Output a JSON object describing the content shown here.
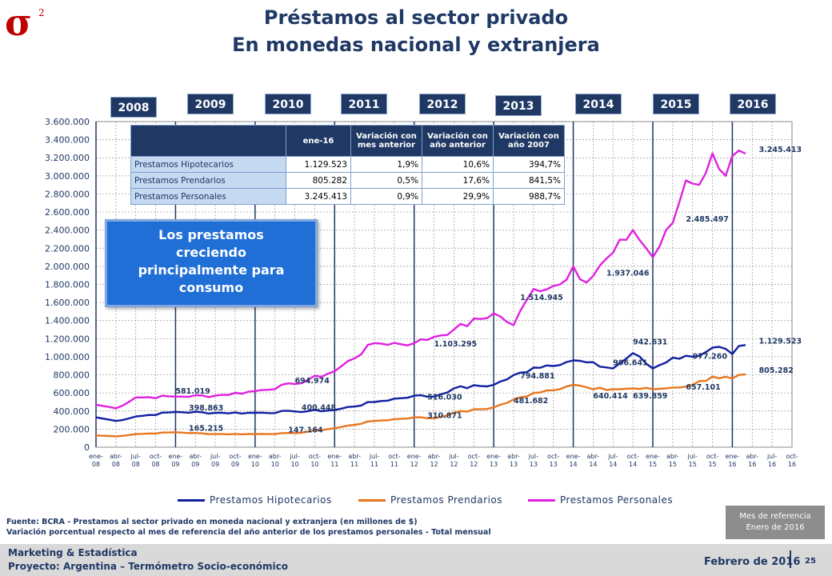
{
  "logo": {
    "symbol": "σ",
    "superscript": "2"
  },
  "title": {
    "line1": "Préstamos al sector privado",
    "line2": "En monedas nacional y extranjera"
  },
  "years": [
    "2008",
    "2009",
    "2010",
    "2011",
    "2012",
    "2013",
    "2014",
    "2015",
    "2016"
  ],
  "summary_table": {
    "headers": [
      "ene-16",
      "Variación con\nmes anterior",
      "Variación con\naño anterior",
      "Variación con\naño 2007"
    ],
    "rows": [
      [
        "Prestamos Hipotecarios",
        "1.129.523",
        "1,9%",
        "10,6%",
        "394,7%"
      ],
      [
        "Prestamos Prendarios",
        "805.282",
        "0,5%",
        "17,6%",
        "841,5%"
      ],
      [
        "Prestamos Personales",
        "3.245.413",
        "0,9%",
        "29,9%",
        "988,7%"
      ]
    ]
  },
  "callout": {
    "line1": "Los prestamos",
    "line2": "creciendo",
    "line3": "principalmente  para",
    "line4": "consumo"
  },
  "colors": {
    "hipotecarios": "#1020a0",
    "prendarios": "#e8761e",
    "personales": "#e020e0",
    "navy": "#1f3864"
  },
  "chart_data": {
    "type": "line",
    "ylim": [
      0,
      3600000
    ],
    "yticks": [
      "0",
      "200.000",
      "400.000",
      "600.000",
      "800.000",
      "1.000.000",
      "1.200.000",
      "1.400.000",
      "1.600.000",
      "1.800.000",
      "2.000.000",
      "2.200.000",
      "2.400.000",
      "2.600.000",
      "2.800.000",
      "3.000.000",
      "3.200.000",
      "3.400.000",
      "3.600.000"
    ],
    "xticks": [
      "ene-08",
      "abr-08",
      "jul-08",
      "oct-08",
      "ene-09",
      "abr-09",
      "jul-09",
      "oct-09",
      "ene-10",
      "abr-10",
      "jul-10",
      "oct-10",
      "ene-11",
      "abr-11",
      "jul-11",
      "oct-11",
      "ene-12",
      "abr-12",
      "jul-12",
      "oct-12",
      "ene-13",
      "abr-13",
      "jul-13",
      "oct-13",
      "ene-14",
      "abr-14",
      "jul-14",
      "oct-14",
      "ene-15",
      "abr-15",
      "jul-15",
      "oct-15",
      "ene-16",
      "abr-16",
      "jul-16",
      "oct-16"
    ],
    "n_months": 108,
    "series": [
      {
        "name": "Prestamos Hipotecarios",
        "knots": [
          [
            0,
            330000
          ],
          [
            3,
            290000
          ],
          [
            6,
            340000
          ],
          [
            12,
            390000
          ],
          [
            18,
            380000
          ],
          [
            24,
            380000
          ],
          [
            30,
            395000
          ],
          [
            36,
            410000
          ],
          [
            42,
            500000
          ],
          [
            48,
            570000
          ],
          [
            51,
            560000
          ],
          [
            54,
            650000
          ],
          [
            60,
            690000
          ],
          [
            66,
            880000
          ],
          [
            72,
            960000
          ],
          [
            78,
            870000
          ],
          [
            81,
            1040000
          ],
          [
            84,
            870000
          ],
          [
            87,
            990000
          ],
          [
            90,
            1000000
          ],
          [
            93,
            1100000
          ],
          [
            94,
            1110000
          ],
          [
            96,
            1030000
          ],
          [
            97,
            1120000
          ],
          [
            98,
            1129523
          ]
        ]
      },
      {
        "name": "Prestamos Prendarios",
        "knots": [
          [
            0,
            130000
          ],
          [
            3,
            120000
          ],
          [
            6,
            145000
          ],
          [
            12,
            165000
          ],
          [
            18,
            145000
          ],
          [
            24,
            145000
          ],
          [
            30,
            155000
          ],
          [
            36,
            210000
          ],
          [
            42,
            290000
          ],
          [
            48,
            330000
          ],
          [
            51,
            320000
          ],
          [
            54,
            380000
          ],
          [
            60,
            440000
          ],
          [
            66,
            600000
          ],
          [
            72,
            690000
          ],
          [
            75,
            640000
          ],
          [
            78,
            640000
          ],
          [
            81,
            650000
          ],
          [
            84,
            640000
          ],
          [
            87,
            660000
          ],
          [
            90,
            690000
          ],
          [
            93,
            780000
          ],
          [
            96,
            760000
          ],
          [
            97,
            800000
          ],
          [
            98,
            805282
          ]
        ]
      },
      {
        "name": "Prestamos Personales",
        "knots": [
          [
            0,
            470000
          ],
          [
            3,
            430000
          ],
          [
            6,
            550000
          ],
          [
            12,
            560000
          ],
          [
            18,
            570000
          ],
          [
            24,
            620000
          ],
          [
            30,
            700000
          ],
          [
            36,
            840000
          ],
          [
            42,
            1150000
          ],
          [
            48,
            1150000
          ],
          [
            51,
            1220000
          ],
          [
            54,
            1300000
          ],
          [
            60,
            1480000
          ],
          [
            63,
            1350000
          ],
          [
            66,
            1750000
          ],
          [
            70,
            1800000
          ],
          [
            72,
            2000000
          ],
          [
            74,
            1820000
          ],
          [
            78,
            2150000
          ],
          [
            81,
            2400000
          ],
          [
            84,
            2100000
          ],
          [
            87,
            2480000
          ],
          [
            89,
            2950000
          ],
          [
            91,
            2900000
          ],
          [
            93,
            3250000
          ],
          [
            95,
            3000000
          ],
          [
            96,
            3220000
          ],
          [
            98,
            3245413
          ]
        ]
      }
    ],
    "annotations": [
      {
        "text": "581.019",
        "x": 12,
        "y": 575000
      },
      {
        "text": "398.863",
        "x": 14,
        "y": 390000
      },
      {
        "text": "165.215",
        "x": 14,
        "y": 165000
      },
      {
        "text": "694.974",
        "x": 30,
        "y": 690000
      },
      {
        "text": "400.448",
        "x": 31,
        "y": 395000
      },
      {
        "text": "147.164",
        "x": 29,
        "y": 145000
      },
      {
        "text": "1.103.295",
        "x": 51,
        "y": 1095000
      },
      {
        "text": "516.030",
        "x": 50,
        "y": 510000
      },
      {
        "text": "310.871",
        "x": 50,
        "y": 305000
      },
      {
        "text": "1.514.945",
        "x": 64,
        "y": 1610000
      },
      {
        "text": "794.881",
        "x": 64,
        "y": 745000
      },
      {
        "text": "481.682",
        "x": 63,
        "y": 470000
      },
      {
        "text": "1.937.046",
        "x": 77,
        "y": 1880000
      },
      {
        "text": "942.631",
        "x": 81,
        "y": 1120000
      },
      {
        "text": "906.641",
        "x": 78,
        "y": 890000
      },
      {
        "text": "640.414",
        "x": 75,
        "y": 520000
      },
      {
        "text": "639.859",
        "x": 81,
        "y": 520000
      },
      {
        "text": "2.485.497",
        "x": 89,
        "y": 2475000
      },
      {
        "text": "977.260",
        "x": 90,
        "y": 960000
      },
      {
        "text": "657.101",
        "x": 89,
        "y": 620000
      },
      {
        "text": "3.245.413",
        "x": 100,
        "y": 3245413
      },
      {
        "text": "1.129.523",
        "x": 100,
        "y": 1129523
      },
      {
        "text": "805.282",
        "x": 100,
        "y": 805282
      }
    ]
  },
  "legend": [
    "Prestamos Hipotecarios",
    "Prestamos Prendarios",
    "Prestamos Personales"
  ],
  "source": {
    "line1": "Fuente: BCRA - Prestamos al sector privado en moneda nacional y extranjera (en millones de $)",
    "line2": "Variación porcentual respecto al mes de referencia del año anterior de los prestamos personales - Total mensual"
  },
  "reference": {
    "line1": "Mes de referencia",
    "line2": "Enero de 2016"
  },
  "footer": {
    "line1": "Marketing & Estadística",
    "line2": "Proyecto: Argentina – Termómetro Socio-económico",
    "date": "Febrero de 2016",
    "page": "25"
  }
}
